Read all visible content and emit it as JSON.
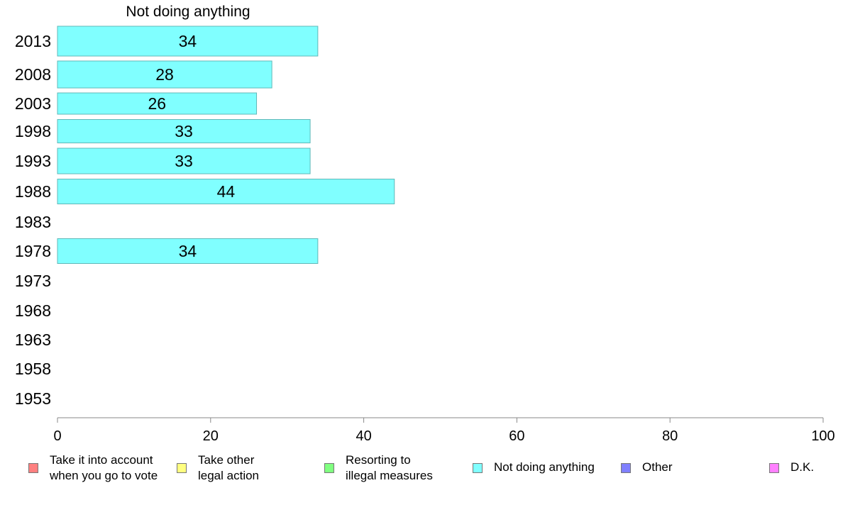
{
  "chart_data": {
    "type": "bar",
    "orientation": "horizontal",
    "title": "Not doing anything",
    "categories": [
      "2013",
      "2008",
      "2003",
      "1998",
      "1993",
      "1988",
      "1983",
      "1978",
      "1973",
      "1968",
      "1963",
      "1958",
      "1953"
    ],
    "values": [
      34,
      28,
      26,
      33,
      33,
      44,
      null,
      34,
      null,
      null,
      null,
      null,
      null
    ],
    "series_color": "#80ffff",
    "bar_border_color": "#5fb8b8",
    "xlim": [
      0,
      100
    ],
    "xticks": [
      "0",
      "20",
      "40",
      "60",
      "80",
      "100"
    ],
    "grid": false,
    "legend_position": "bottom",
    "legend": [
      {
        "label": "Take it into account\nwhen you go to vote",
        "color": "#ff8080"
      },
      {
        "label": "Take other\nlegal action",
        "color": "#ffff80"
      },
      {
        "label": "Resorting to\nillegal measures",
        "color": "#80ff80"
      },
      {
        "label": "Not doing anything",
        "color": "#80ffff"
      },
      {
        "label": "Other",
        "color": "#8080ff"
      },
      {
        "label": "D.K.",
        "color": "#ff80ff"
      }
    ]
  }
}
